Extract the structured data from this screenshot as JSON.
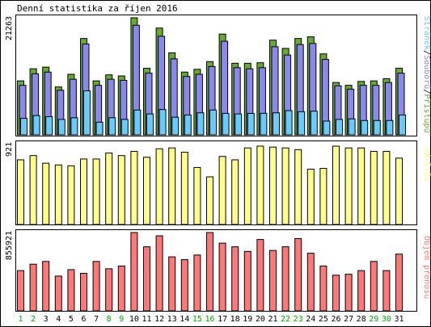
{
  "title": "Denní statistika za říjen 2016",
  "days": [
    "1",
    "2",
    "3",
    "4",
    "5",
    "6",
    "7",
    "8",
    "9",
    "10",
    "11",
    "12",
    "13",
    "14",
    "15",
    "16",
    "17",
    "18",
    "19",
    "20",
    "21",
    "22",
    "23",
    "24",
    "25",
    "26",
    "27",
    "28",
    "29",
    "30",
    "31"
  ],
  "weekend_days": [
    "1",
    "2",
    "8",
    "9",
    "15",
    "16",
    "22",
    "23",
    "29",
    "30"
  ],
  "colors": {
    "hits": "#66aa33",
    "files": "#8888ee",
    "pages": "#66ccff",
    "visits": "#ffff88",
    "kbytes": "#ff7777",
    "weekend_label": "#00aa00",
    "weekday_label": "#000000"
  },
  "chart_data": [
    {
      "type": "bar",
      "ymax_label": "21263",
      "ylim": [
        0,
        21263
      ],
      "legend": [
        "Stránek",
        "Souborů",
        "Přístupů"
      ],
      "series": [
        {
          "name": "Přístupů",
          "values": [
            9800,
            12000,
            12300,
            8700,
            11000,
            17500,
            9800,
            10900,
            10700,
            21263,
            12100,
            19400,
            14900,
            11400,
            11900,
            13300,
            18300,
            13000,
            13000,
            13100,
            17200,
            15700,
            17500,
            17800,
            14700,
            9500,
            9000,
            9700,
            9800,
            10200,
            12100
          ]
        },
        {
          "name": "Souborů",
          "values": [
            9000,
            11100,
            11400,
            8100,
            10100,
            16500,
            9000,
            10100,
            9900,
            19900,
            11200,
            17900,
            13800,
            10600,
            11000,
            12400,
            17000,
            12200,
            12000,
            12200,
            16000,
            14500,
            16400,
            16600,
            13700,
            8900,
            8300,
            9000,
            9000,
            9500,
            11200
          ]
        },
        {
          "name": "Stránek",
          "values": [
            3000,
            3500,
            3300,
            2800,
            3100,
            8000,
            2300,
            3100,
            2800,
            4500,
            3800,
            4600,
            3200,
            3600,
            4000,
            4500,
            3900,
            3800,
            3900,
            3900,
            4000,
            4400,
            4200,
            4300,
            2500,
            2800,
            2900,
            2600,
            2600,
            2600,
            3600
          ]
        }
      ]
    },
    {
      "type": "bar",
      "ymax_label": "921",
      "ylim": [
        0,
        921
      ],
      "legend": [
        "Návštěv"
      ],
      "series": [
        {
          "name": "Návštěv",
          "values": [
            760,
            810,
            720,
            700,
            690,
            770,
            770,
            840,
            810,
            860,
            790,
            890,
            900,
            850,
            670,
            560,
            800,
            760,
            900,
            921,
            910,
            900,
            880,
            650,
            660,
            921,
            900,
            900,
            860,
            860,
            780
          ]
        }
      ]
    },
    {
      "type": "bar",
      "ymax_label": "855921",
      "ylim": [
        0,
        855921
      ],
      "legend": [
        "Objem přenosu"
      ],
      "series": [
        {
          "name": "Objem přenosu",
          "values": [
            440000,
            510000,
            540000,
            380000,
            450000,
            410000,
            540000,
            460000,
            490000,
            855921,
            700000,
            820000,
            590000,
            560000,
            610000,
            855921,
            740000,
            700000,
            650000,
            780000,
            660000,
            700000,
            790000,
            630000,
            490000,
            390000,
            400000,
            440000,
            540000,
            440000,
            620000
          ]
        }
      ]
    }
  ]
}
